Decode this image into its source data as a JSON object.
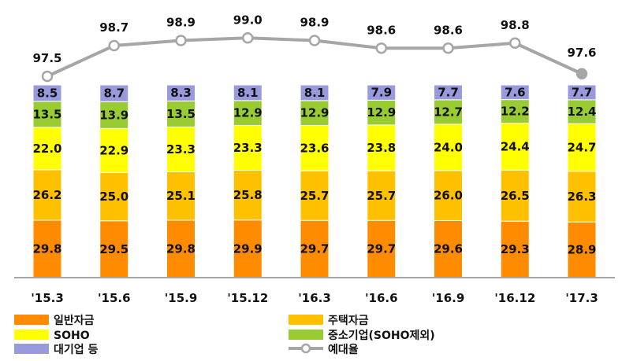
{
  "chart_data": {
    "type": "bar",
    "stacked": true,
    "categories": [
      "'15.3",
      "'15.6",
      "'15.9",
      "'15.12",
      "'16.3",
      "'16.6",
      "'16.9",
      "'16.12",
      "'17.3"
    ],
    "series": [
      {
        "name": "일반자금",
        "color": "#FF8C00",
        "values": [
          29.8,
          29.5,
          29.8,
          29.9,
          29.7,
          29.7,
          29.6,
          29.3,
          28.9
        ]
      },
      {
        "name": "주택자금",
        "color": "#FFC000",
        "values": [
          26.2,
          25.0,
          25.1,
          25.8,
          25.7,
          25.7,
          26.0,
          26.5,
          26.3
        ]
      },
      {
        "name": "SOHO",
        "color": "#FFFF00",
        "values": [
          22.0,
          22.9,
          23.3,
          23.3,
          23.6,
          23.8,
          24.0,
          24.4,
          24.7
        ]
      },
      {
        "name": "중소기업(SOHO제외)",
        "color": "#99CC33",
        "values": [
          13.5,
          13.9,
          13.5,
          12.9,
          12.9,
          12.9,
          12.7,
          12.2,
          12.4
        ]
      },
      {
        "name": "대기업 등",
        "color": "#9999DD",
        "values": [
          8.5,
          8.7,
          8.3,
          8.1,
          8.1,
          7.9,
          7.7,
          7.6,
          7.7
        ]
      }
    ],
    "line_series": {
      "name": "예대율",
      "color": "#A6A6A6",
      "values": [
        97.5,
        98.7,
        98.9,
        99.0,
        98.9,
        98.6,
        98.6,
        98.8,
        97.6
      ]
    },
    "title": "",
    "xlabel": "",
    "ylabel": "",
    "legend_position": "bottom",
    "grid": false
  }
}
